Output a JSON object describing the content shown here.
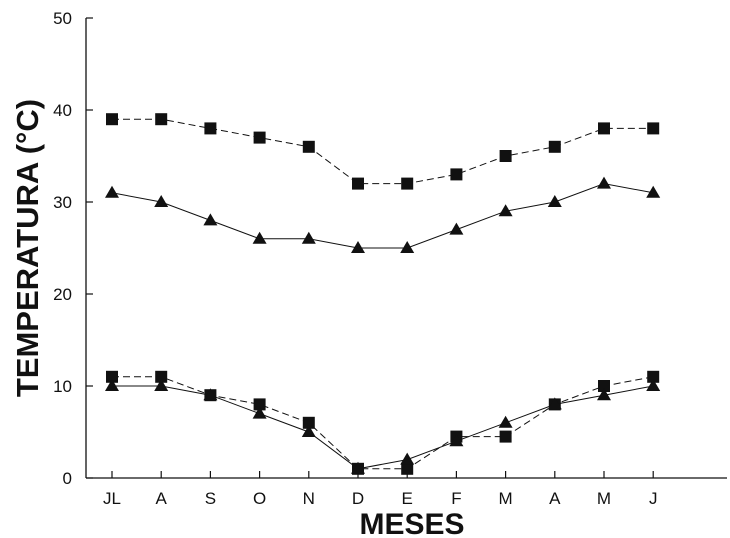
{
  "chart_data": {
    "type": "line",
    "title": "",
    "xlabel": "MESES",
    "ylabel": "TEMPERATURA (°C)",
    "categories": [
      "JL",
      "A",
      "S",
      "O",
      "N",
      "D",
      "E",
      "F",
      "M",
      "A",
      "M",
      "J"
    ],
    "ylim": [
      0,
      50
    ],
    "yticks": [
      0,
      10,
      20,
      30,
      40,
      50
    ],
    "grid": false,
    "legend": "none",
    "series": [
      {
        "marker": "square",
        "linestyle": "dashed",
        "color": "#111111",
        "values": [
          39,
          39,
          38,
          37,
          36,
          32,
          32,
          33,
          35,
          36,
          38,
          38
        ]
      },
      {
        "marker": "triangle",
        "linestyle": "solid",
        "color": "#111111",
        "values": [
          31,
          30,
          28,
          26,
          26,
          25,
          25,
          27,
          29,
          30,
          32,
          31
        ]
      },
      {
        "marker": "square",
        "linestyle": "dashed",
        "color": "#111111",
        "values": [
          11,
          11,
          9,
          8,
          6,
          1,
          1,
          4.5,
          4.5,
          8,
          10,
          11
        ]
      },
      {
        "marker": "triangle",
        "linestyle": "solid",
        "color": "#111111",
        "values": [
          10,
          10,
          9,
          7,
          5,
          1,
          2,
          4,
          6,
          8,
          9,
          10
        ]
      }
    ]
  }
}
